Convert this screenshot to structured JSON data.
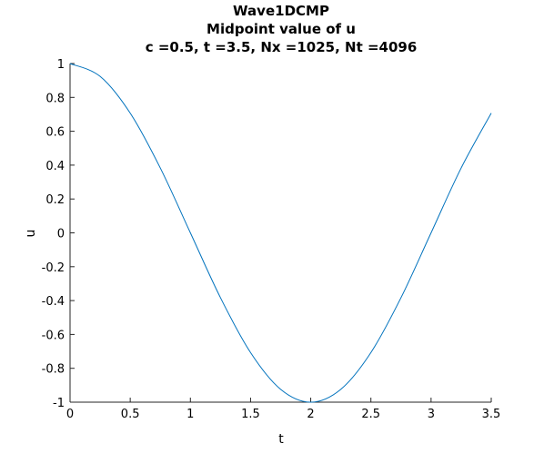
{
  "chart_data": {
    "type": "line",
    "title": [
      "Wave1DCMP",
      "Midpoint value of u",
      "c =0.5,  t =3.5,  Nx =1025,  Nt =4096"
    ],
    "xlabel": "t",
    "ylabel": "u",
    "xlim": [
      0,
      3.5
    ],
    "ylim": [
      -1,
      1
    ],
    "xticks": [
      0,
      0.5,
      1,
      1.5,
      2,
      2.5,
      3,
      3.5
    ],
    "xtick_labels": [
      "0",
      "0.5",
      "1",
      "1.5",
      "2",
      "2.5",
      "3",
      "3.5"
    ],
    "yticks": [
      1,
      0.8,
      0.6,
      0.4,
      0.2,
      0,
      -0.2,
      -0.4,
      -0.6,
      -0.8,
      -1
    ],
    "ytick_labels": [
      "1",
      "0.8",
      "0.6",
      "0.4",
      "0.2",
      "0",
      "-0.2",
      "-0.4",
      "-0.6",
      "-0.8",
      "-1"
    ],
    "grid": false,
    "legend": "none",
    "line_color": "#0072BD",
    "series": [
      {
        "x": [
          0,
          0.25,
          0.5,
          0.75,
          1.0,
          1.25,
          1.5,
          1.75,
          2.0,
          2.25,
          2.5,
          2.75,
          3.0,
          3.25,
          3.5
        ],
        "y": [
          1.0,
          0.924,
          0.707,
          0.383,
          0.0,
          -0.383,
          -0.707,
          -0.924,
          -1.0,
          -0.924,
          -0.707,
          -0.383,
          0.0,
          0.383,
          0.707
        ]
      }
    ]
  }
}
